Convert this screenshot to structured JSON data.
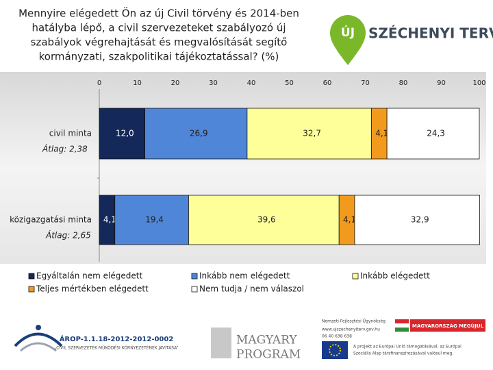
{
  "chart_data": {
    "type": "stacked-barh",
    "title": [
      "Mennyire elégedett Ön az új Civil törvény és 2014-ben",
      "hatályba lépő, a civil szervezeteket szabályozó új",
      "szabályok végrehajtását és megvalósítását segítő",
      "kormányzati, szakpolitikai tájékoztatással? (%)"
    ],
    "categories": [
      "civil minta",
      "közigazgatási minta"
    ],
    "annotations": [
      "Átlag: 2,38",
      "Átlag: 2,65"
    ],
    "series": [
      {
        "name": "Egyáltalán nem elégedett",
        "color": "#14285a",
        "values": [
          12.0,
          4.1
        ],
        "value_labels": [
          "12,0",
          "4,1"
        ]
      },
      {
        "name": "Inkább nem elégedett",
        "color": "#4f86d8",
        "values": [
          26.9,
          19.4
        ],
        "value_labels": [
          "26,9",
          "19,4"
        ]
      },
      {
        "name": "Inkább elégedett",
        "color": "#ffff99",
        "values": [
          32.7,
          39.6
        ],
        "value_labels": [
          "32,7",
          "39,6"
        ]
      },
      {
        "name": "Teljes mértékben elégedett",
        "color": "#f29a1e",
        "values": [
          4.1,
          4.1
        ],
        "value_labels": [
          "4,1",
          "4,1"
        ]
      },
      {
        "name": "Nem tudja / nem válaszol",
        "color": "#ffffff",
        "values": [
          24.3,
          32.9
        ],
        "value_labels": [
          "24,3",
          "32,9"
        ]
      }
    ],
    "xlim": [
      0,
      100
    ],
    "xticks": [
      0,
      10,
      20,
      30,
      40,
      50,
      60,
      70,
      80,
      90,
      100
    ],
    "grid": false
  },
  "logos": {
    "top_left": "ÚJ",
    "top_right": "SZÉCHENYI TERV",
    "arop": "ÁROP-1.1.18-2012-2012-0002",
    "arop_sub": "„CIVIL SZERVEZETEK MŰKÖDÉSI KÖRNYEZETÉNEK JAVÍTÁSA”",
    "magyary_1": "MAGYARY",
    "magyary_2": "PROGRAM",
    "nfu": "Nemzeti Fejlesztési Ügynökség",
    "web": "www.ujszechenyiterv.gov.hu",
    "phone": "06 40 638 638",
    "megujul": "MAGYARORSZÁG MEGÚJUL",
    "eu_1": "A projekt az Európai Unió támogatásával, az Európai",
    "eu_2": "Szociális Alap társfinanszírozásával valósul meg."
  }
}
